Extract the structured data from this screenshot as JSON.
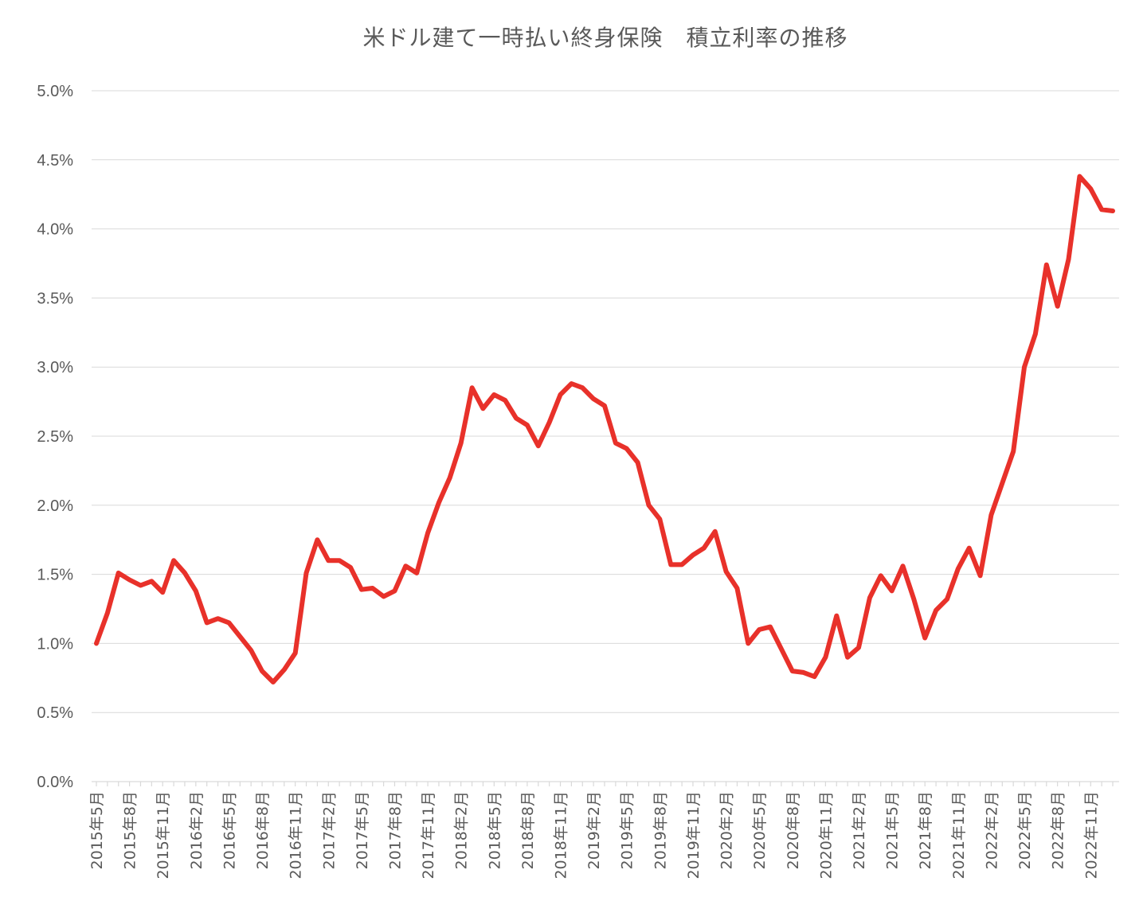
{
  "chart_data": {
    "type": "line",
    "title": "米ドル建て一時払い終身保険　積立利率の推移",
    "xlabel": "",
    "ylabel": "",
    "ylim": [
      0,
      5.0
    ],
    "yticks": [
      "0.0%",
      "0.5%",
      "1.0%",
      "1.5%",
      "2.0%",
      "2.5%",
      "3.0%",
      "3.5%",
      "4.0%",
      "4.5%",
      "5.0%"
    ],
    "grid": true,
    "legend": "none",
    "x_tick_labels": [
      "2015年5月",
      "2015年8月",
      "2015年11月",
      "2016年2月",
      "2016年5月",
      "2016年8月",
      "2016年11月",
      "2017年2月",
      "2017年5月",
      "2017年8月",
      "2017年11月",
      "2018年2月",
      "2018年5月",
      "2018年8月",
      "2018年11月",
      "2019年2月",
      "2019年5月",
      "2019年8月",
      "2019年11月",
      "2020年2月",
      "2020年5月",
      "2020年8月",
      "2020年11月",
      "2021年2月",
      "2021年5月",
      "2021年8月",
      "2021年11月",
      "2022年2月",
      "2022年5月",
      "2022年8月",
      "2022年11月"
    ],
    "x": [
      "2015年5月",
      "2015年6月",
      "2015年7月",
      "2015年8月",
      "2015年9月",
      "2015年10月",
      "2015年11月",
      "2015年12月",
      "2016年1月",
      "2016年2月",
      "2016年3月",
      "2016年4月",
      "2016年5月",
      "2016年6月",
      "2016年7月",
      "2016年8月",
      "2016年9月",
      "2016年10月",
      "2016年11月",
      "2016年12月",
      "2017年1月",
      "2017年2月",
      "2017年3月",
      "2017年4月",
      "2017年5月",
      "2017年6月",
      "2017年7月",
      "2017年8月",
      "2017年9月",
      "2017年10月",
      "2017年11月",
      "2017年12月",
      "2018年1月",
      "2018年2月",
      "2018年3月",
      "2018年4月",
      "2018年5月",
      "2018年6月",
      "2018年7月",
      "2018年8月",
      "2018年9月",
      "2018年10月",
      "2018年11月",
      "2018年12月",
      "2019年1月",
      "2019年2月",
      "2019年3月",
      "2019年4月",
      "2019年5月",
      "2019年6月",
      "2019年7月",
      "2019年8月",
      "2019年9月",
      "2019年10月",
      "2019年11月",
      "2019年12月",
      "2020年1月",
      "2020年2月",
      "2020年3月",
      "2020年4月",
      "2020年5月",
      "2020年6月",
      "2020年7月",
      "2020年8月",
      "2020年9月",
      "2020年10月",
      "2020年11月",
      "2020年12月",
      "2021年1月",
      "2021年2月",
      "2021年3月",
      "2021年4月",
      "2021年5月",
      "2021年6月",
      "2021年7月",
      "2021年8月",
      "2021年9月",
      "2021年10月",
      "2021年11月",
      "2021年12月",
      "2022年1月",
      "2022年2月",
      "2022年3月",
      "2022年4月",
      "2022年5月",
      "2022年6月",
      "2022年7月",
      "2022年8月",
      "2022年9月",
      "2022年10月",
      "2022年11月",
      "2022年12月",
      "2023年1月"
    ],
    "series": [
      {
        "values": [
          1.0,
          1.22,
          1.51,
          1.46,
          1.42,
          1.45,
          1.37,
          1.6,
          1.51,
          1.38,
          1.15,
          1.18,
          1.15,
          1.05,
          0.95,
          0.8,
          0.72,
          0.81,
          0.93,
          1.51,
          1.75,
          1.6,
          1.6,
          1.55,
          1.39,
          1.4,
          1.34,
          1.38,
          1.56,
          1.51,
          1.8,
          2.02,
          2.2,
          2.45,
          2.85,
          2.7,
          2.8,
          2.76,
          2.63,
          2.58,
          2.43,
          2.6,
          2.8,
          2.88,
          2.85,
          2.77,
          2.72,
          2.45,
          2.41,
          2.31,
          2.0,
          1.9,
          1.57,
          1.57,
          1.64,
          1.69,
          1.81,
          1.52,
          1.4,
          1.0,
          1.1,
          1.12,
          0.96,
          0.8,
          0.79,
          0.76,
          0.9,
          1.2,
          0.9,
          0.97,
          1.33,
          1.49,
          1.38,
          1.56,
          1.32,
          1.04,
          1.24,
          1.32,
          1.54,
          1.69,
          1.49,
          1.93,
          2.16,
          2.39,
          3.0,
          3.24,
          3.74,
          3.44,
          3.78,
          4.38,
          4.29,
          4.14,
          4.13
        ],
        "color": "#e8312a"
      }
    ]
  }
}
